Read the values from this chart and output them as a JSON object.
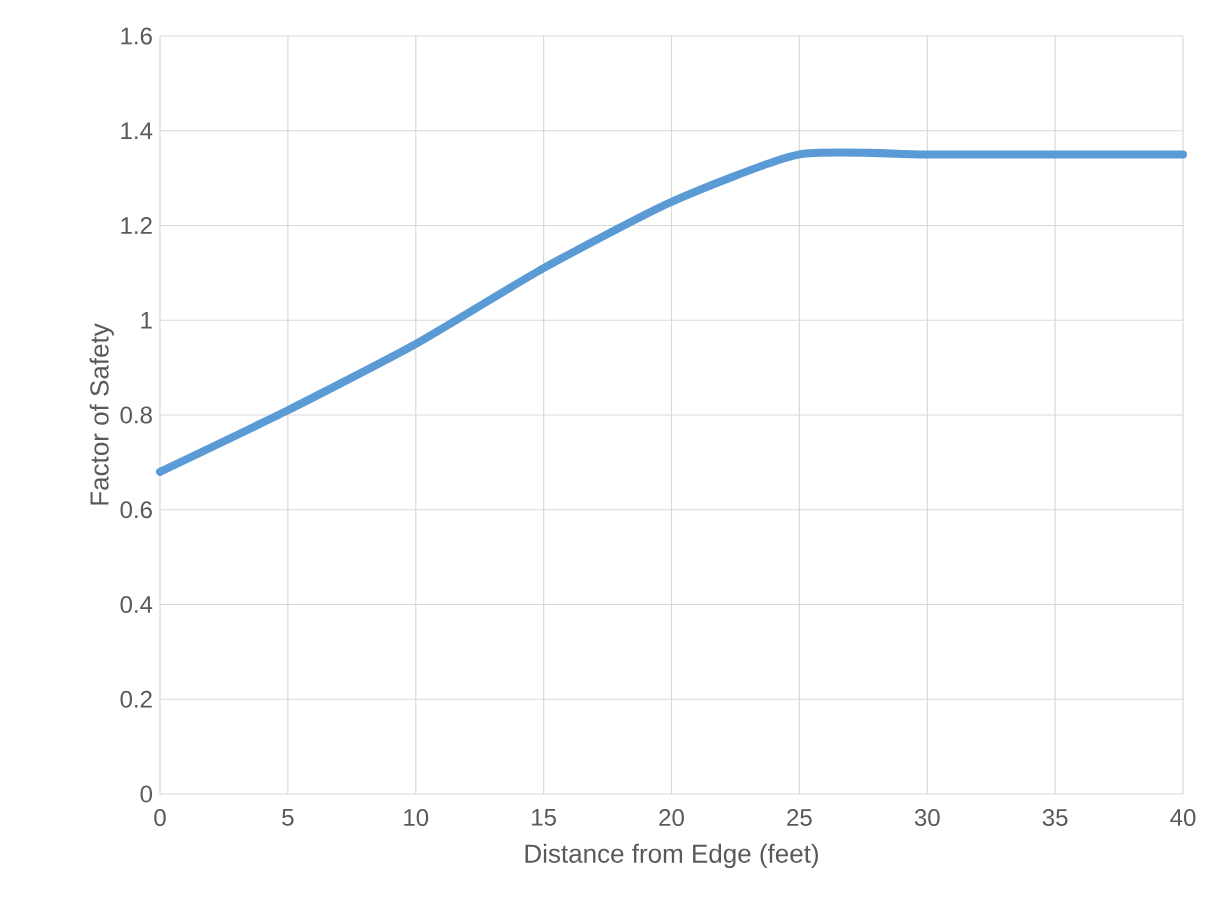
{
  "chart_data": {
    "type": "line",
    "xlabel": "Distance from Edge (feet)",
    "ylabel": "Factor of Safety",
    "x": [
      0,
      5,
      10,
      15,
      20,
      25,
      30,
      35,
      40
    ],
    "series": [
      {
        "color": "#5b9bd5",
        "values": [
          0.68,
          0.81,
          0.95,
          1.11,
          1.25,
          1.35,
          1.35,
          1.35,
          1.35
        ]
      }
    ],
    "xlim": [
      0,
      40
    ],
    "xticks": [
      0,
      5,
      10,
      15,
      20,
      25,
      30,
      35,
      40
    ],
    "ylim": [
      0,
      1.6
    ],
    "yticks": [
      0,
      0.2,
      0.4,
      0.6,
      0.8,
      1,
      1.2,
      1.4,
      1.6
    ],
    "grid": true,
    "legend": false,
    "marker": "none",
    "line_style": "solid"
  }
}
